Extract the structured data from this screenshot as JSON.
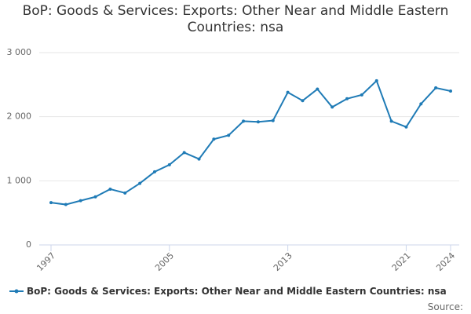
{
  "chart_data": {
    "type": "line",
    "title": "BoP: Goods & Services: Exports: Other Near and Middle Eastern Countries: nsa",
    "x": [
      1997,
      1998,
      1999,
      2000,
      2001,
      2002,
      2003,
      2004,
      2005,
      2006,
      2007,
      2008,
      2009,
      2010,
      2011,
      2012,
      2013,
      2014,
      2015,
      2016,
      2017,
      2018,
      2019,
      2020,
      2021,
      2022,
      2023,
      2024
    ],
    "series": [
      {
        "name": "BoP: Goods & Services: Exports: Other Near and Middle Eastern Countries: nsa",
        "color": "#1f7bb6",
        "values": [
          660,
          630,
          690,
          750,
          870,
          810,
          960,
          1140,
          1250,
          1440,
          1340,
          1650,
          1710,
          1930,
          1920,
          1940,
          2380,
          2250,
          2430,
          2150,
          2280,
          2340,
          2560,
          1930,
          1840,
          2200,
          2450,
          2400
        ]
      }
    ],
    "xlim": [
      1997,
      2024
    ],
    "xticks": [
      1997,
      2005,
      2013,
      2021,
      2024
    ],
    "ylim": [
      0,
      3000
    ],
    "yticks": [
      0,
      {
        "value": 1000,
        "label": "1 000"
      },
      {
        "value": 2000,
        "label": "2 000"
      },
      {
        "value": 3000,
        "label": "3 000"
      }
    ],
    "grid": true,
    "source_label": "Source:"
  }
}
